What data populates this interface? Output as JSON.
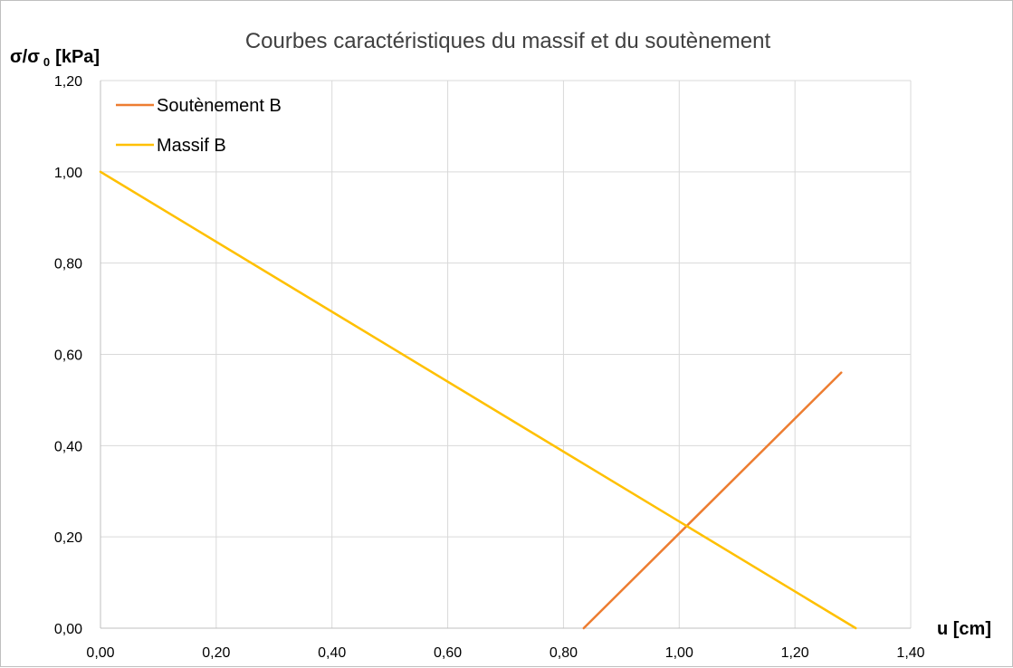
{
  "chart_data": {
    "type": "line",
    "title": "Courbes caractéristiques du massif et du soutènement",
    "ylabel_main": "σ/σ",
    "ylabel_sub": "0",
    "ylabel_unit": "[kPa]",
    "xlabel": "u [cm]",
    "xlim": [
      0,
      1.4
    ],
    "ylim": [
      0,
      1.2
    ],
    "x_ticks": [
      0,
      0.2,
      0.4,
      0.6,
      0.8,
      1.0,
      1.2,
      1.4
    ],
    "y_ticks": [
      0,
      0.2,
      0.4,
      0.6,
      0.8,
      1.0,
      1.2
    ],
    "x_tick_labels": [
      "0,00",
      "0,20",
      "0,40",
      "0,60",
      "0,80",
      "1,00",
      "1,20",
      "1,40"
    ],
    "y_tick_labels": [
      "0,00",
      "0,20",
      "0,40",
      "0,60",
      "0,80",
      "1,00",
      "1,20"
    ],
    "grid": true,
    "legend_position": "top-left",
    "series": [
      {
        "name": "Soutènement B",
        "color": "#ED7D31",
        "x": [
          0.835,
          1.28
        ],
        "y": [
          0.0,
          0.56
        ]
      },
      {
        "name": "Massif B",
        "color": "#FFC000",
        "x": [
          0.0,
          1.305
        ],
        "y": [
          1.0,
          0.0
        ]
      }
    ]
  }
}
